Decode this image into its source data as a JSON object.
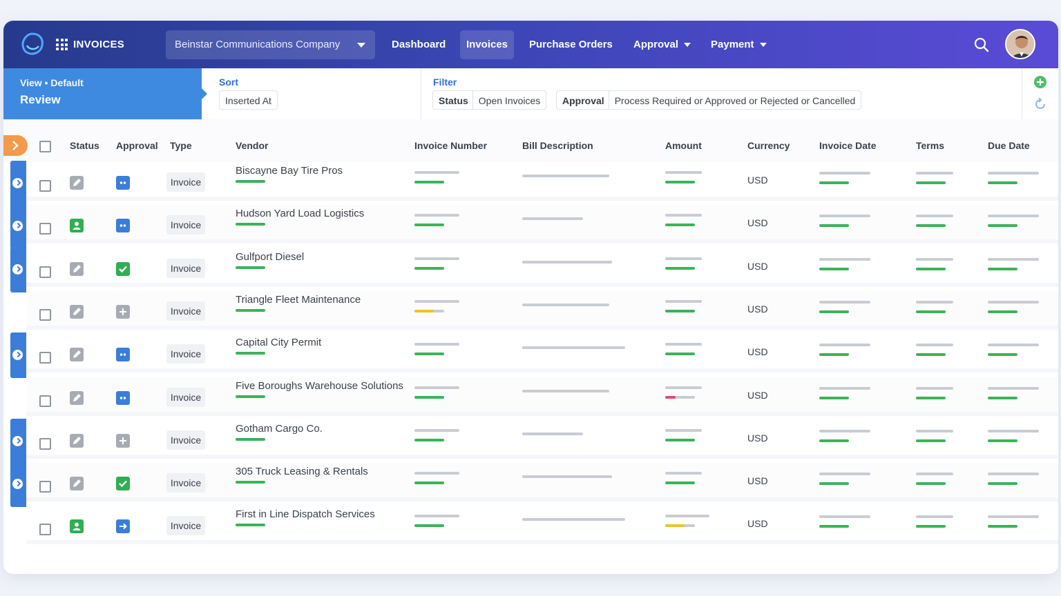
{
  "app": {
    "title": "INVOICES",
    "company": "Beinstar Communications Company",
    "nav": [
      "Dashboard",
      "Invoices",
      "Purchase Orders",
      "Approval",
      "Payment"
    ],
    "active_nav": "Invoices"
  },
  "view": {
    "sub": "View • Default",
    "main": "Review"
  },
  "sort": {
    "label": "Sort",
    "value": "Inserted At"
  },
  "filter": {
    "label": "Filter",
    "status_key": "Status",
    "status_value": "Open Invoices",
    "approval_key": "Approval",
    "approval_value": "Process Required or Approved or Rejected or Cancelled"
  },
  "columns": [
    "Status",
    "Approval",
    "Type",
    "Vendor",
    "Invoice Number",
    "Bill Description",
    "Amount",
    "Currency",
    "Invoice Date",
    "Terms",
    "Due Date"
  ],
  "rows": [
    {
      "type": "Invoice",
      "vendor": "Biscayne Bay Tire Pros",
      "currency": "USD",
      "flag": true,
      "status": "draft",
      "approval": "pending",
      "amount_marker": "green"
    },
    {
      "type": "Invoice",
      "vendor": "Hudson Yard Load Logistics",
      "currency": "USD",
      "flag": true,
      "status": "user",
      "approval": "pending",
      "amount_marker": "green"
    },
    {
      "type": "Invoice",
      "vendor": "Gulfport Diesel",
      "currency": "USD",
      "flag": true,
      "status": "draft",
      "approval": "approved",
      "amount_marker": "green"
    },
    {
      "type": "Invoice",
      "vendor": "Triangle Fleet Maintenance",
      "currency": "USD",
      "flag": false,
      "status": "draft",
      "approval": "add",
      "amount_marker": "green",
      "number_marker": "yellow"
    },
    {
      "type": "Invoice",
      "vendor": "Capital City Permit",
      "currency": "USD",
      "flag": true,
      "status": "draft",
      "approval": "pending",
      "amount_marker": "green"
    },
    {
      "type": "Invoice",
      "vendor": "Five Boroughs Warehouse Solutions",
      "currency": "USD",
      "flag": false,
      "status": "draft",
      "approval": "pending",
      "amount_marker": "red"
    },
    {
      "type": "Invoice",
      "vendor": "Gotham Cargo Co.",
      "currency": "USD",
      "flag": true,
      "status": "draft",
      "approval": "add",
      "amount_marker": "green"
    },
    {
      "type": "Invoice",
      "vendor": "305 Truck Leasing & Rentals",
      "currency": "USD",
      "flag": true,
      "status": "draft",
      "approval": "approved",
      "amount_marker": "green"
    },
    {
      "type": "Invoice",
      "vendor": "First in Line Dispatch Services",
      "currency": "USD",
      "flag": false,
      "status": "user",
      "approval": "forward",
      "amount_marker": "yellow"
    }
  ],
  "colors": {
    "topbar_start": "#263a8c",
    "topbar_end": "#5a4bd6",
    "view_bg": "#3e8ae0",
    "green": "#3db25a",
    "blue": "#3b7dd8",
    "orange": "#f39a4b",
    "yellow": "#f0c324",
    "red": "#e8457a"
  },
  "icons": [
    "logo-icon",
    "apps-grid-icon",
    "chevron-down-icon",
    "search-icon",
    "add-circle-icon",
    "refresh-icon",
    "chevron-right-icon",
    "edit-icon",
    "user-icon",
    "dots-icon",
    "check-icon",
    "plus-icon",
    "arrow-right-icon"
  ]
}
